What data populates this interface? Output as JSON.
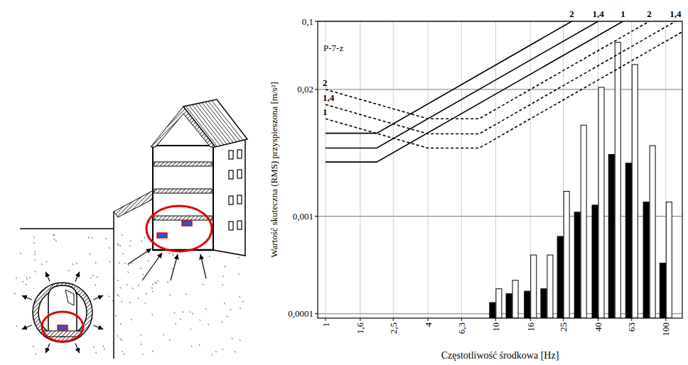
{
  "chart_data": {
    "type": "bar",
    "annotations": [
      "P-7-z"
    ],
    "x_label": "Częstotliwość środkowa [Hz]",
    "y_label": "Wartość skuteczna (RMS) przyspieszona [m/s²]",
    "log": true,
    "grid": true,
    "xlim": [
      0.9,
      125
    ],
    "ylim": [
      9e-05,
      0.1
    ],
    "xticks": [
      1,
      {
        "value": 1.6,
        "label": "1,6"
      },
      {
        "value": 2.5,
        "label": "2,5"
      },
      4,
      {
        "value": 6.3,
        "label": "6,3"
      },
      10,
      16,
      25,
      40,
      63,
      100
    ],
    "yticks": [
      {
        "value": 0.0001,
        "label": "0,0001"
      },
      {
        "value": 0.001,
        "label": "0,001"
      },
      {
        "value": 0.02,
        "label": "0,02"
      },
      {
        "value": 0.1,
        "label": "0,1"
      }
    ],
    "x": [
      10,
      12.5,
      16,
      20,
      25,
      31.5,
      40,
      50,
      63,
      80,
      100
    ],
    "series": [
      {
        "type": "bar",
        "color": "#000000",
        "values": [
          0.00013,
          0.00016,
          0.00017,
          0.00018,
          0.00062,
          0.0011,
          0.0013,
          0.0043,
          0.0035,
          0.0014,
          0.00033
        ]
      },
      {
        "type": "bar",
        "color": "#ffffff",
        "values": [
          0.00018,
          0.00022,
          0.0004,
          0.0004,
          0.0018,
          0.0086,
          0.021,
          0.061,
          0.036,
          0.0053,
          0.0014
        ]
      },
      {
        "name": "2",
        "type": "line",
        "line_style": "solid",
        "color": "#000000",
        "x": [
          1,
          2,
          28
        ],
        "values": [
          0.0071,
          0.0071,
          0.1
        ]
      },
      {
        "name": "1,4",
        "type": "line",
        "line_style": "solid",
        "color": "#000000",
        "x": [
          1,
          2,
          40
        ],
        "values": [
          0.005,
          0.005,
          0.1
        ]
      },
      {
        "name": "1",
        "type": "line",
        "line_style": "solid",
        "color": "#000000",
        "x": [
          1,
          2,
          56
        ],
        "values": [
          0.0036,
          0.0036,
          0.1
        ]
      },
      {
        "name": "2",
        "type": "line",
        "line_style": "dashed",
        "color": "#000000",
        "x": [
          1,
          4,
          8,
          80
        ],
        "values": [
          0.02,
          0.01,
          0.01,
          0.1
        ]
      },
      {
        "name": "1,4",
        "type": "line",
        "line_style": "dashed",
        "color": "#000000",
        "x": [
          1,
          4,
          8,
          114
        ],
        "values": [
          0.014,
          0.007,
          0.007,
          0.1
        ]
      },
      {
        "name": "1",
        "type": "line",
        "line_style": "dashed",
        "color": "#000000",
        "x": [
          1,
          4,
          8,
          125
        ],
        "values": [
          0.01,
          0.005,
          0.005,
          0.078
        ]
      }
    ]
  }
}
